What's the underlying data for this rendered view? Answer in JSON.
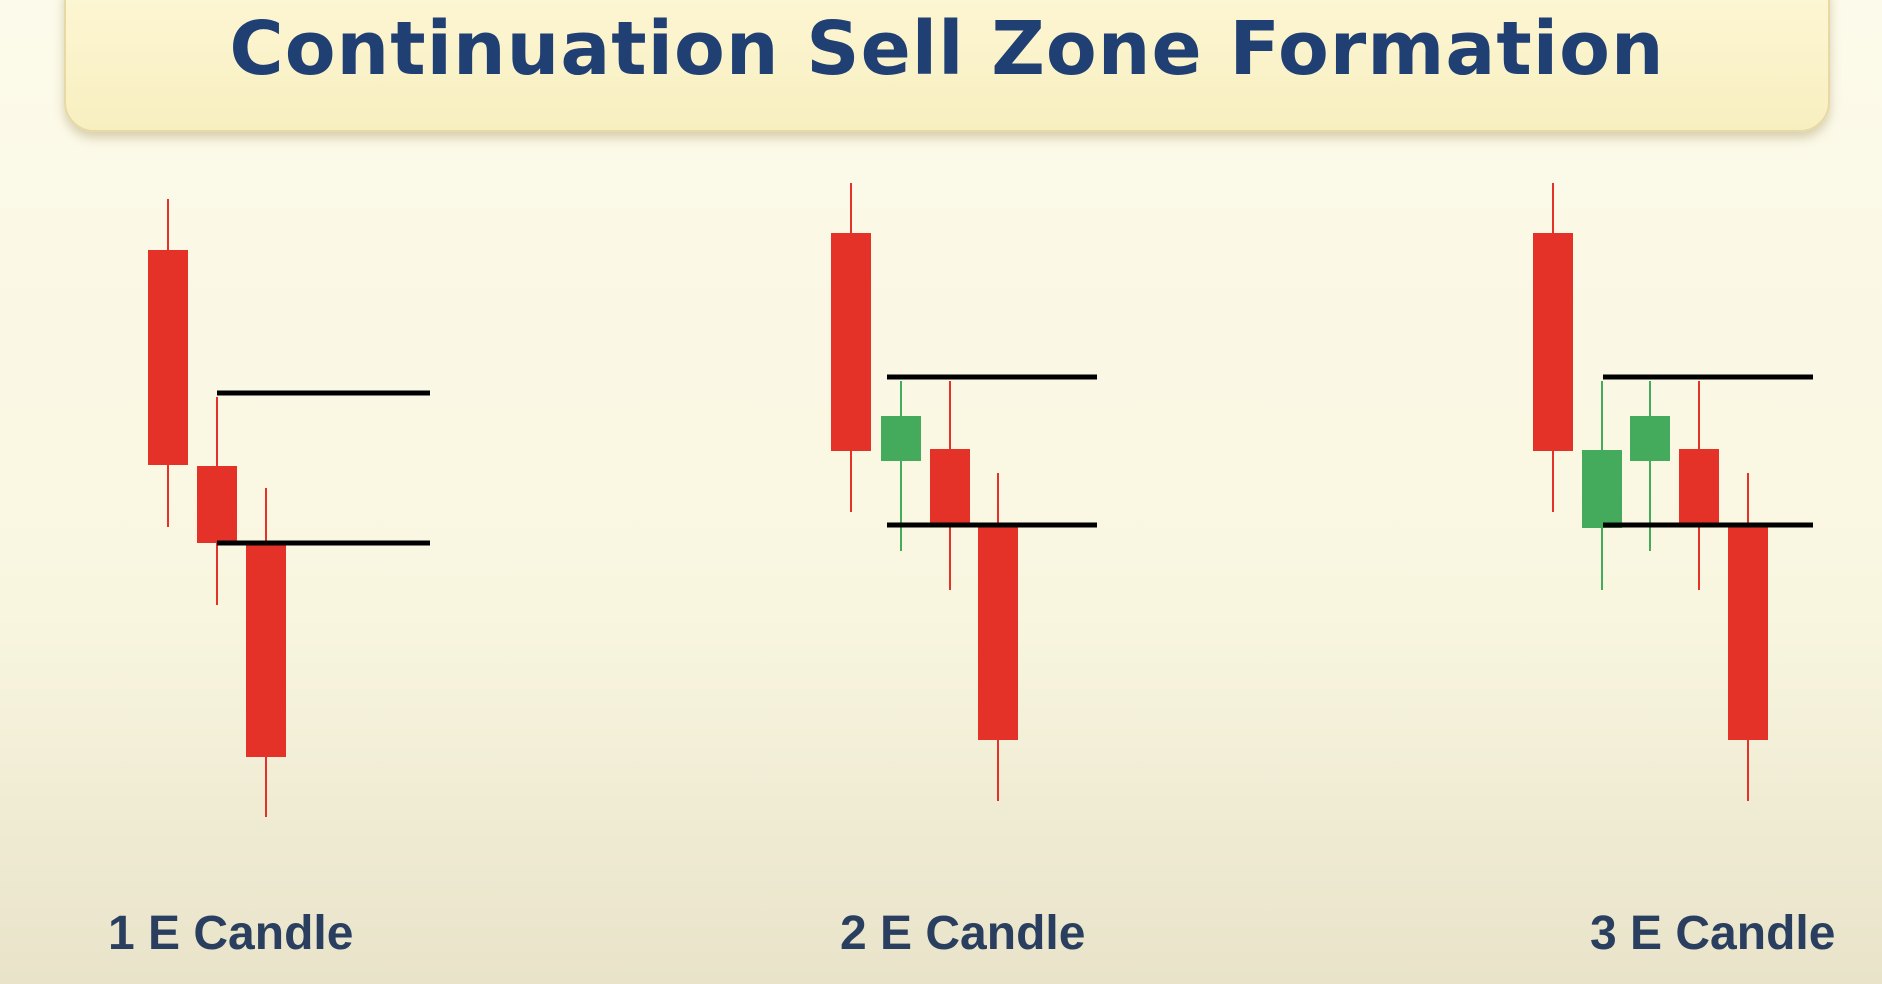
{
  "title": "Continuation Sell Zone Formation",
  "colors": {
    "bearish": "#e53228",
    "bullish": "#45ab5c",
    "zone_line": "#000000",
    "title_text": "#203f73",
    "caption_text": "#2a3f5f"
  },
  "panels": [
    {
      "caption": "1 E Candle",
      "candles": [
        {
          "type": "bearish",
          "wick_top": 199,
          "body_top": 250,
          "body_bottom": 465,
          "wick_bottom": 527
        },
        {
          "type": "bearish",
          "wick_top": 397,
          "body_top": 466,
          "body_bottom": 543,
          "wick_bottom": 605
        },
        {
          "type": "bearish",
          "wick_top": 488,
          "body_top": 541,
          "body_bottom": 757,
          "wick_bottom": 817
        }
      ],
      "zone": {
        "top": 393,
        "bottom": 543
      }
    },
    {
      "caption": "2 E Candle",
      "candles": [
        {
          "type": "bearish",
          "wick_top": 183,
          "body_top": 233,
          "body_bottom": 451,
          "wick_bottom": 512
        },
        {
          "type": "bullish",
          "wick_top": 381,
          "body_top": 416,
          "body_bottom": 461,
          "wick_bottom": 551
        },
        {
          "type": "bearish",
          "wick_top": 381,
          "body_top": 449,
          "body_bottom": 525,
          "wick_bottom": 590
        },
        {
          "type": "bearish",
          "wick_top": 473,
          "body_top": 524,
          "body_bottom": 740,
          "wick_bottom": 801
        }
      ],
      "zone": {
        "top": 377,
        "bottom": 525
      }
    },
    {
      "caption": "3 E Candle",
      "candles": [
        {
          "type": "bearish",
          "wick_top": 183,
          "body_top": 233,
          "body_bottom": 451,
          "wick_bottom": 512
        },
        {
          "type": "bullish",
          "wick_top": 381,
          "body_top": 450,
          "body_bottom": 528,
          "wick_bottom": 590
        },
        {
          "type": "bullish",
          "wick_top": 381,
          "body_top": 416,
          "body_bottom": 461,
          "wick_bottom": 551
        },
        {
          "type": "bearish",
          "wick_top": 381,
          "body_top": 449,
          "body_bottom": 525,
          "wick_bottom": 590
        },
        {
          "type": "bearish",
          "wick_top": 473,
          "body_top": 524,
          "body_bottom": 740,
          "wick_bottom": 801
        }
      ],
      "zone": {
        "top": 377,
        "bottom": 525
      }
    }
  ]
}
